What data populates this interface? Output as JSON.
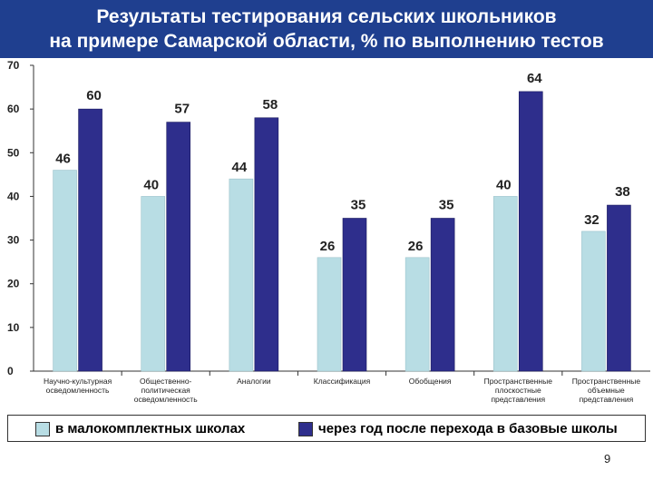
{
  "title": {
    "line1": "Результаты тестирования сельских школьников",
    "line2": "на примере Самарской области, % по выполнению тестов"
  },
  "colors": {
    "title_bg": "#1f3f8f",
    "series1": "#b8dde4",
    "series2": "#2e2e8c"
  },
  "page_number": "9",
  "chart_data": {
    "type": "bar",
    "categories": [
      [
        "Научно-культурная",
        "осведомленность"
      ],
      [
        "Общественно-",
        "политическая",
        "осведомленность"
      ],
      [
        "Аналогии"
      ],
      [
        "Классификация"
      ],
      [
        "Обобщения"
      ],
      [
        "Пространственные",
        "плоскостные",
        "представления"
      ],
      [
        "Пространственные",
        "объемные",
        "представления"
      ]
    ],
    "series": [
      {
        "name": "в малокомплектных школах",
        "values": [
          46,
          40,
          44,
          26,
          26,
          40,
          32
        ]
      },
      {
        "name": "через год после перехода в базовые школы",
        "values": [
          60,
          57,
          58,
          35,
          35,
          64,
          38
        ]
      }
    ],
    "ylim": [
      0,
      70
    ],
    "yticks": [
      0,
      10,
      20,
      30,
      40,
      50,
      60,
      70
    ],
    "grid": false,
    "legend": "bottom",
    "data_labels": true
  }
}
